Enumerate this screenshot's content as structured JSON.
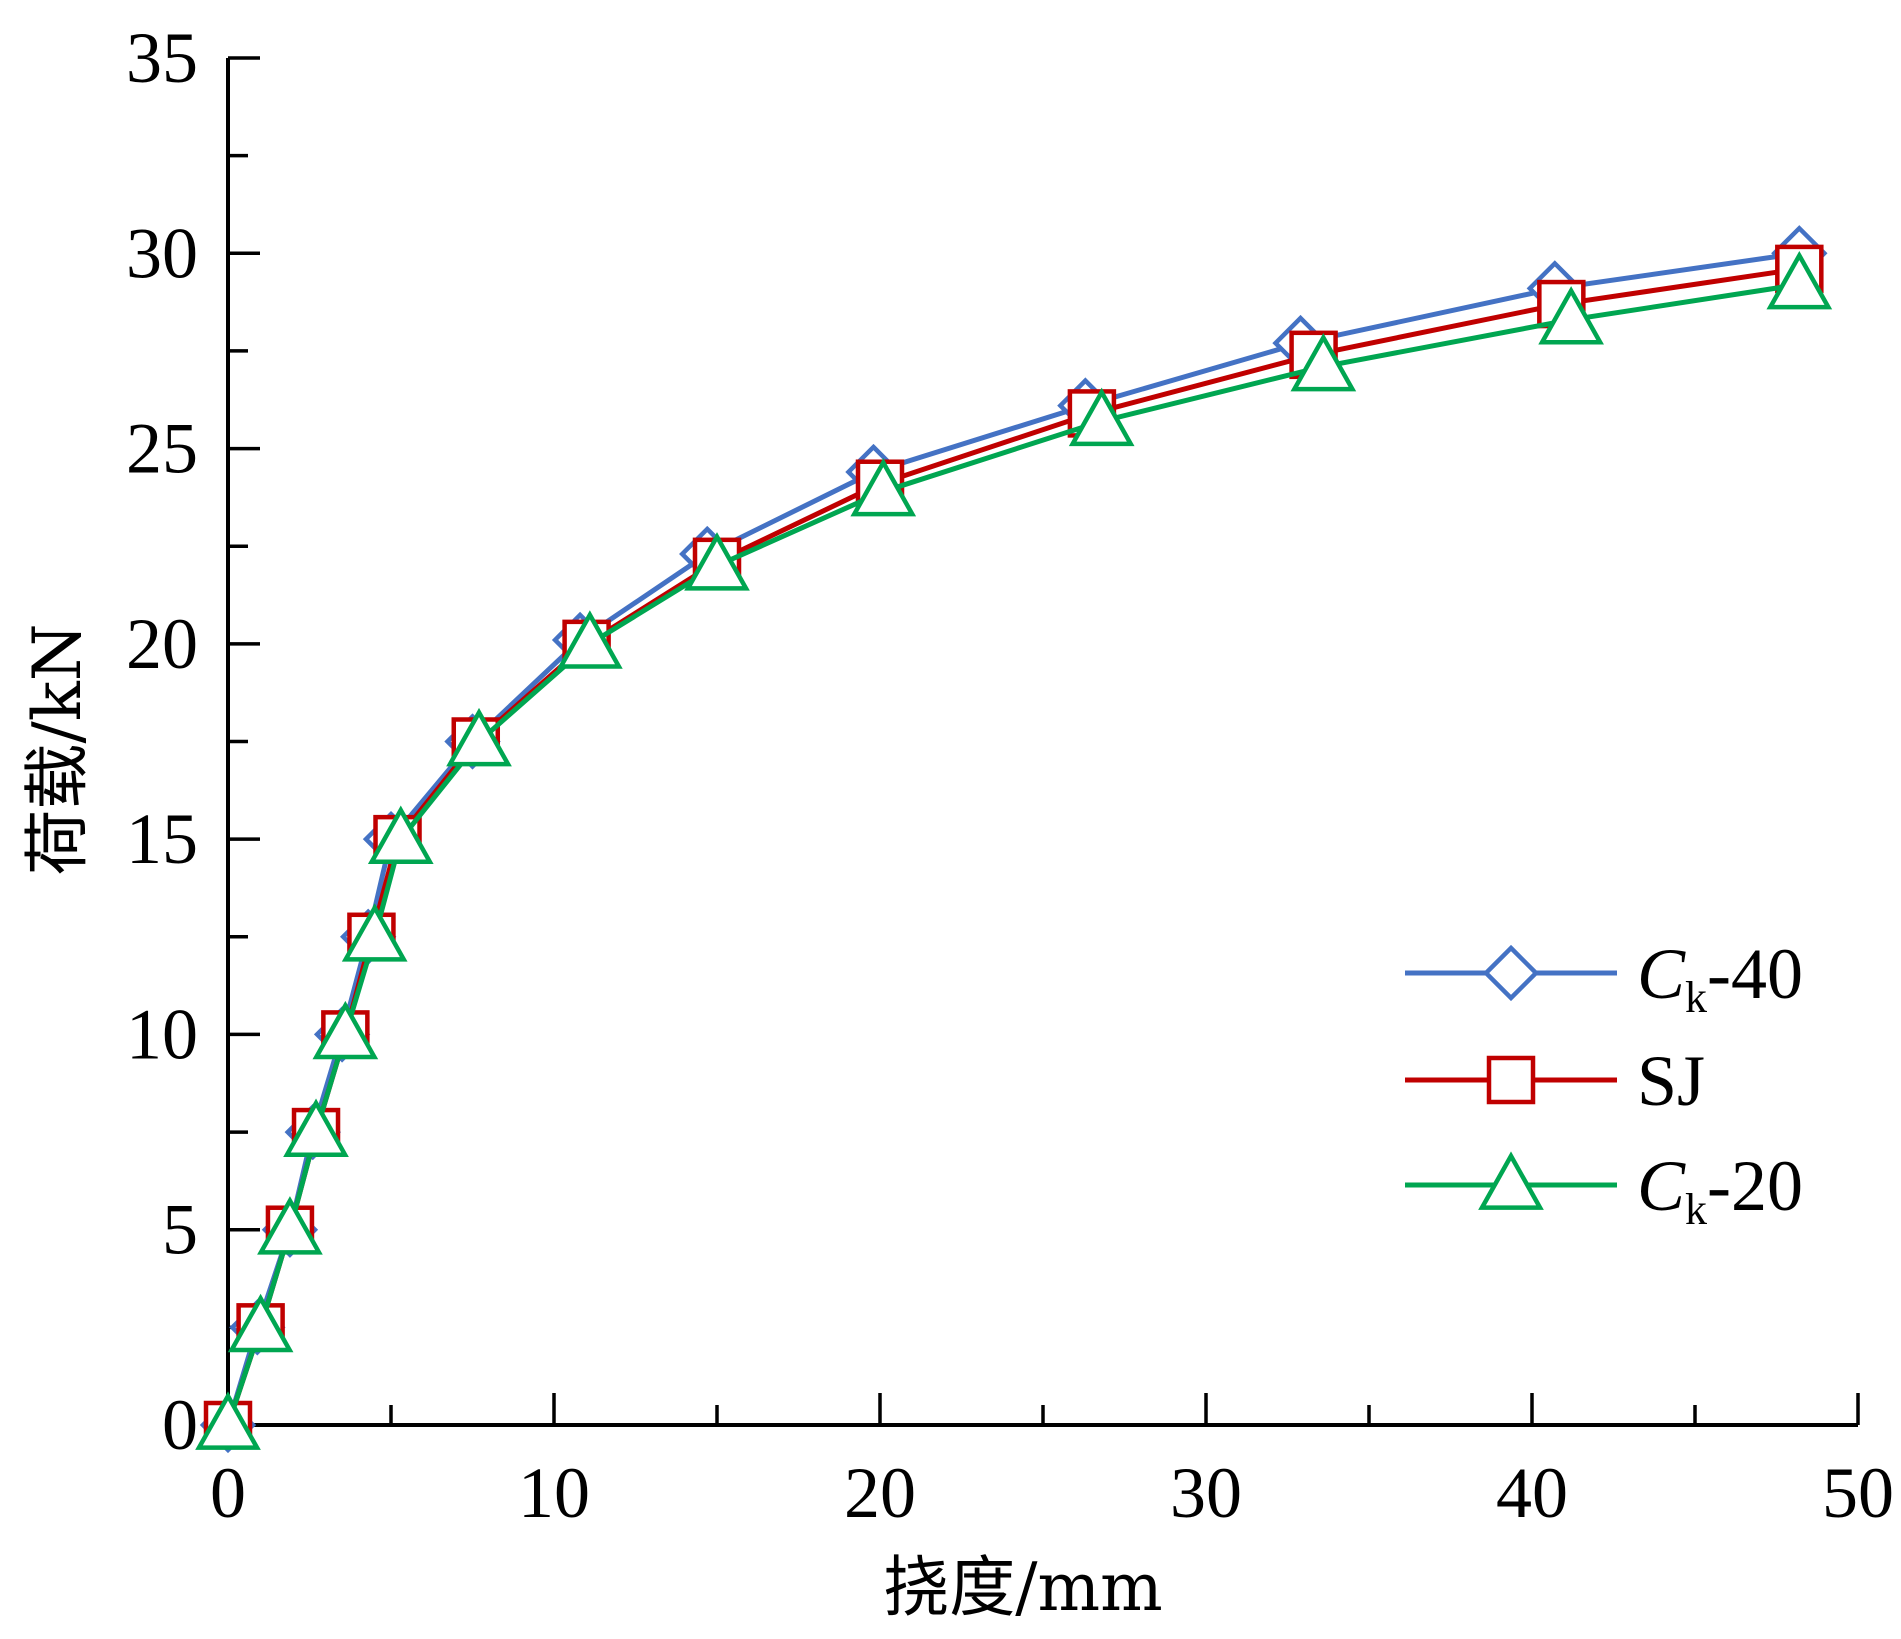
{
  "chart_data": {
    "type": "line",
    "xlabel": "挠度/mm",
    "ylabel": "荷载/kN",
    "xlim": [
      0,
      50
    ],
    "ylim": [
      0,
      35
    ],
    "x_ticks": [
      "0",
      "10",
      "20",
      "30",
      "40",
      "50"
    ],
    "y_ticks": [
      "0",
      "5",
      "10",
      "15",
      "20",
      "25",
      "30",
      "35"
    ],
    "grid": false,
    "legend_position": "lower-right",
    "series": [
      {
        "name": "Ck-40",
        "legend_main": "C",
        "legend_sub": "k",
        "legend_suffix": "-40",
        "marker": "diamond",
        "color": "#4472C4",
        "x": [
          0.0,
          0.9,
          1.9,
          2.6,
          3.5,
          4.3,
          5.0,
          7.5,
          10.8,
          14.7,
          19.8,
          26.3,
          32.9,
          40.7,
          48.2
        ],
        "y": [
          0.0,
          2.5,
          5.0,
          7.5,
          10.0,
          12.5,
          15.0,
          17.5,
          20.1,
          22.3,
          24.4,
          26.1,
          27.7,
          29.1,
          30.0
        ]
      },
      {
        "name": "SJ",
        "legend_main": "SJ",
        "legend_sub": "",
        "legend_suffix": "",
        "marker": "square",
        "color": "#C00000",
        "x": [
          0.0,
          1.0,
          1.9,
          2.7,
          3.6,
          4.4,
          5.2,
          7.6,
          11.0,
          15.0,
          20.0,
          26.5,
          33.3,
          40.9,
          48.2
        ],
        "y": [
          0.0,
          2.5,
          5.0,
          7.5,
          10.0,
          12.5,
          15.0,
          17.5,
          20.0,
          22.1,
          24.1,
          25.9,
          27.4,
          28.7,
          29.6
        ]
      },
      {
        "name": "Ck-20",
        "legend_main": "C",
        "legend_sub": "k",
        "legend_suffix": "-20",
        "marker": "triangle",
        "color": "#00A651",
        "x": [
          0.0,
          1.0,
          1.9,
          2.7,
          3.6,
          4.5,
          5.3,
          7.7,
          11.1,
          15.0,
          20.1,
          26.8,
          33.6,
          41.2,
          48.2
        ],
        "y": [
          0.0,
          2.5,
          5.0,
          7.5,
          10.0,
          12.5,
          15.0,
          17.5,
          20.0,
          22.0,
          23.9,
          25.7,
          27.1,
          28.3,
          29.2
        ]
      }
    ]
  }
}
